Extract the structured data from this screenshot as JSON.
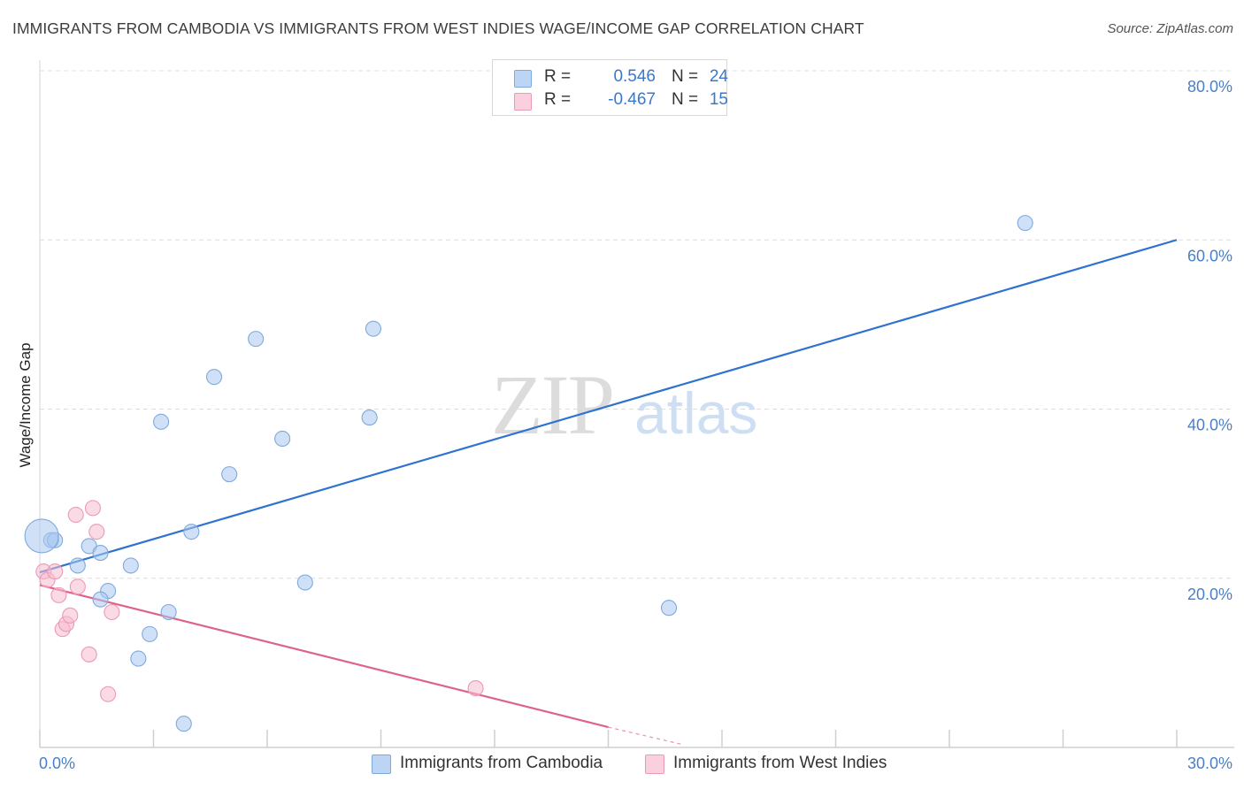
{
  "chart_data": {
    "type": "scatter",
    "title": "IMMIGRANTS FROM CAMBODIA VS IMMIGRANTS FROM WEST INDIES WAGE/INCOME GAP CORRELATION CHART",
    "source": "Source: ZipAtlas.com",
    "ylabel": "Wage/Income Gap",
    "xlabel": "",
    "xlim": [
      0,
      30
    ],
    "ylim": [
      0,
      80
    ],
    "x_tick_labels": [
      "0.0%",
      "30.0%"
    ],
    "y_tick_values": [
      20,
      40,
      60,
      80
    ],
    "y_tick_labels": [
      "20.0%",
      "40.0%",
      "60.0%",
      "80.0%"
    ],
    "watermark": "ZIPatlas",
    "series": [
      {
        "name": "Immigrants from Cambodia",
        "color": "#a9c9f0",
        "line_color": "#2f72cf",
        "R": "0.546",
        "N": "24",
        "trend": [
          [
            0,
            20.7
          ],
          [
            30,
            60.0
          ]
        ],
        "points": [
          [
            0.3,
            24.5
          ],
          [
            0.4,
            24.5
          ],
          [
            1.0,
            21.5
          ],
          [
            1.3,
            23.8
          ],
          [
            1.6,
            23.0
          ],
          [
            1.8,
            18.5
          ],
          [
            2.4,
            21.5
          ],
          [
            1.6,
            17.5
          ],
          [
            3.2,
            38.5
          ],
          [
            4.0,
            25.5
          ],
          [
            4.6,
            43.8
          ],
          [
            5.7,
            48.3
          ],
          [
            5.0,
            32.3
          ],
          [
            6.4,
            36.5
          ],
          [
            7.0,
            19.5
          ],
          [
            8.8,
            49.5
          ],
          [
            8.7,
            39.0
          ],
          [
            3.4,
            16.0
          ],
          [
            2.9,
            13.4
          ],
          [
            2.6,
            10.5
          ],
          [
            3.8,
            2.8
          ],
          [
            16.6,
            16.5
          ],
          [
            26.0,
            62.0
          ],
          [
            0.05,
            25.0
          ]
        ]
      },
      {
        "name": "Immigrants from West Indies",
        "color": "#f6bccf",
        "line_color": "#e0628a",
        "R": "-0.467",
        "N": "15",
        "trend": [
          [
            0,
            19.2
          ],
          [
            15.0,
            2.4
          ]
        ],
        "trend_dashed": [
          [
            15.0,
            2.4
          ],
          [
            17.0,
            0.3
          ]
        ],
        "points": [
          [
            0.1,
            20.8
          ],
          [
            0.2,
            19.8
          ],
          [
            0.4,
            20.8
          ],
          [
            0.5,
            18.0
          ],
          [
            0.6,
            14.0
          ],
          [
            0.7,
            14.6
          ],
          [
            0.8,
            15.6
          ],
          [
            1.0,
            19.0
          ],
          [
            0.95,
            27.5
          ],
          [
            1.4,
            28.3
          ],
          [
            1.5,
            25.5
          ],
          [
            1.3,
            11.0
          ],
          [
            1.9,
            16.0
          ],
          [
            1.8,
            6.3
          ],
          [
            11.5,
            7.0
          ]
        ]
      }
    ]
  }
}
